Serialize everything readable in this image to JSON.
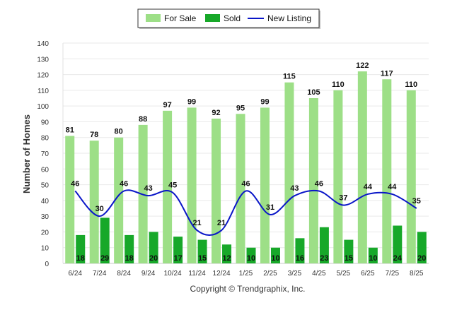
{
  "chart_data": {
    "type": "bar",
    "ylabel": "Number of Homes",
    "xlabel": "",
    "ylim": [
      0,
      140
    ],
    "yticks": [
      0,
      10,
      20,
      30,
      40,
      50,
      60,
      70,
      80,
      90,
      100,
      110,
      120,
      130,
      140
    ],
    "grid": true,
    "legend_position": "top-center",
    "categories": [
      "6/24",
      "7/24",
      "8/24",
      "9/24",
      "10/24",
      "11/24",
      "12/24",
      "1/25",
      "2/25",
      "3/25",
      "4/25",
      "5/25",
      "6/25",
      "7/25",
      "8/25"
    ],
    "series": [
      {
        "name": "For Sale",
        "kind": "bar",
        "color": "#9ddf87",
        "values": [
          81,
          78,
          80,
          88,
          97,
          99,
          92,
          95,
          99,
          115,
          105,
          110,
          122,
          117,
          110
        ]
      },
      {
        "name": "Sold",
        "kind": "bar",
        "color": "#17a829",
        "values": [
          18,
          29,
          18,
          20,
          17,
          15,
          12,
          10,
          10,
          16,
          23,
          15,
          10,
          24,
          20
        ]
      },
      {
        "name": "New Listing",
        "kind": "line",
        "color": "#0a16c8",
        "values": [
          46,
          30,
          46,
          43,
          45,
          21,
          21,
          46,
          31,
          43,
          46,
          37,
          44,
          44,
          35
        ]
      }
    ]
  },
  "footer": {
    "copyright": "Copyright © Trendgraphix, Inc."
  }
}
